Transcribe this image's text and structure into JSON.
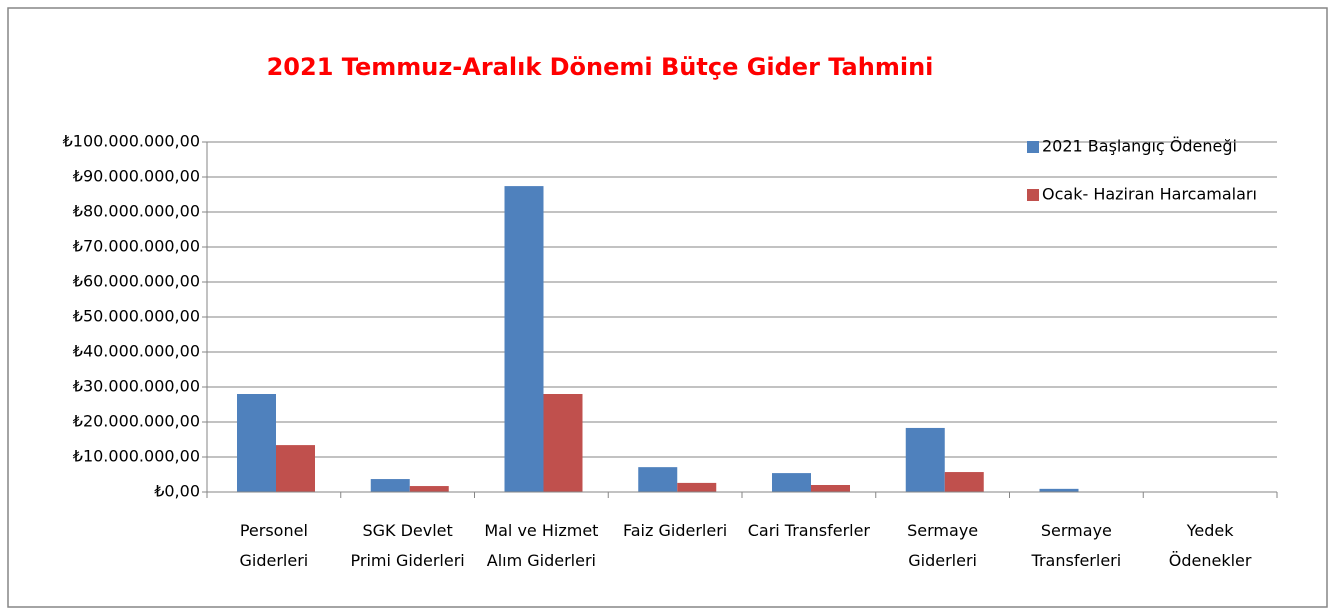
{
  "chart_data": {
    "type": "bar",
    "title": "2021 Temmuz-Aralık Dönemi Bütçe Gider Tahmini",
    "categories": [
      "Personel Giderleri",
      "SGK Devlet Primi Giderleri",
      "Mal ve Hizmet Alım Giderleri",
      "Faiz Giderleri",
      "Cari Transferler",
      "Sermaye Giderleri",
      "Sermaye Transferleri",
      "Yedek Ödenekler"
    ],
    "series": [
      {
        "name": "2021 Başlangıç Ödeneği",
        "color": "#4f81bd",
        "values": [
          28000000,
          3700000,
          87400000,
          7100000,
          5400000,
          18300000,
          900000,
          0
        ]
      },
      {
        "name": "Ocak- Haziran Harcamaları",
        "color": "#c0504d",
        "values": [
          13400000,
          1700000,
          28000000,
          2600000,
          2000000,
          5700000,
          0,
          0
        ]
      }
    ],
    "ylim": [
      0,
      100000000
    ],
    "yticks": [
      {
        "value": 0,
        "label": "₺0,00"
      },
      {
        "value": 10000000,
        "label": "₺10.000.000,00"
      },
      {
        "value": 20000000,
        "label": "₺20.000.000,00"
      },
      {
        "value": 30000000,
        "label": "₺30.000.000,00"
      },
      {
        "value": 40000000,
        "label": "₺40.000.000,00"
      },
      {
        "value": 50000000,
        "label": "₺50.000.000,00"
      },
      {
        "value": 60000000,
        "label": "₺60.000.000,00"
      },
      {
        "value": 70000000,
        "label": "₺70.000.000,00"
      },
      {
        "value": 80000000,
        "label": "₺80.000.000,00"
      },
      {
        "value": 90000000,
        "label": "₺90.000.000,00"
      },
      {
        "value": 100000000,
        "label": "₺100.000.000,00"
      }
    ],
    "grid": true,
    "legend": "right"
  }
}
